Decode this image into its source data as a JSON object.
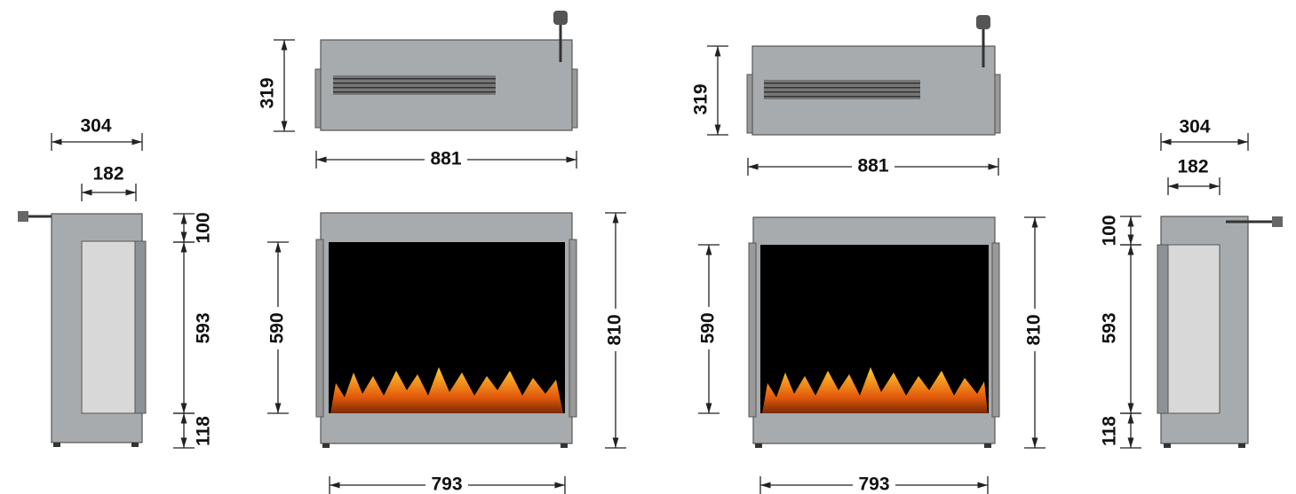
{
  "left_side": {
    "depth": 304,
    "glass_width": 182,
    "top": 100,
    "glass_height": 593,
    "bottom": 118
  },
  "top_left": {
    "height": 319,
    "width": 881
  },
  "front_left": {
    "glass_height": 590,
    "height": 810,
    "glass_width": 793
  },
  "top_right": {
    "height": 319,
    "width": 881
  },
  "front_right": {
    "glass_height": 590,
    "height": 810,
    "glass_width": 793
  },
  "right_side": {
    "depth": 304,
    "glass_width": 182,
    "top": 100,
    "glass_height": 593,
    "bottom": 118
  }
}
